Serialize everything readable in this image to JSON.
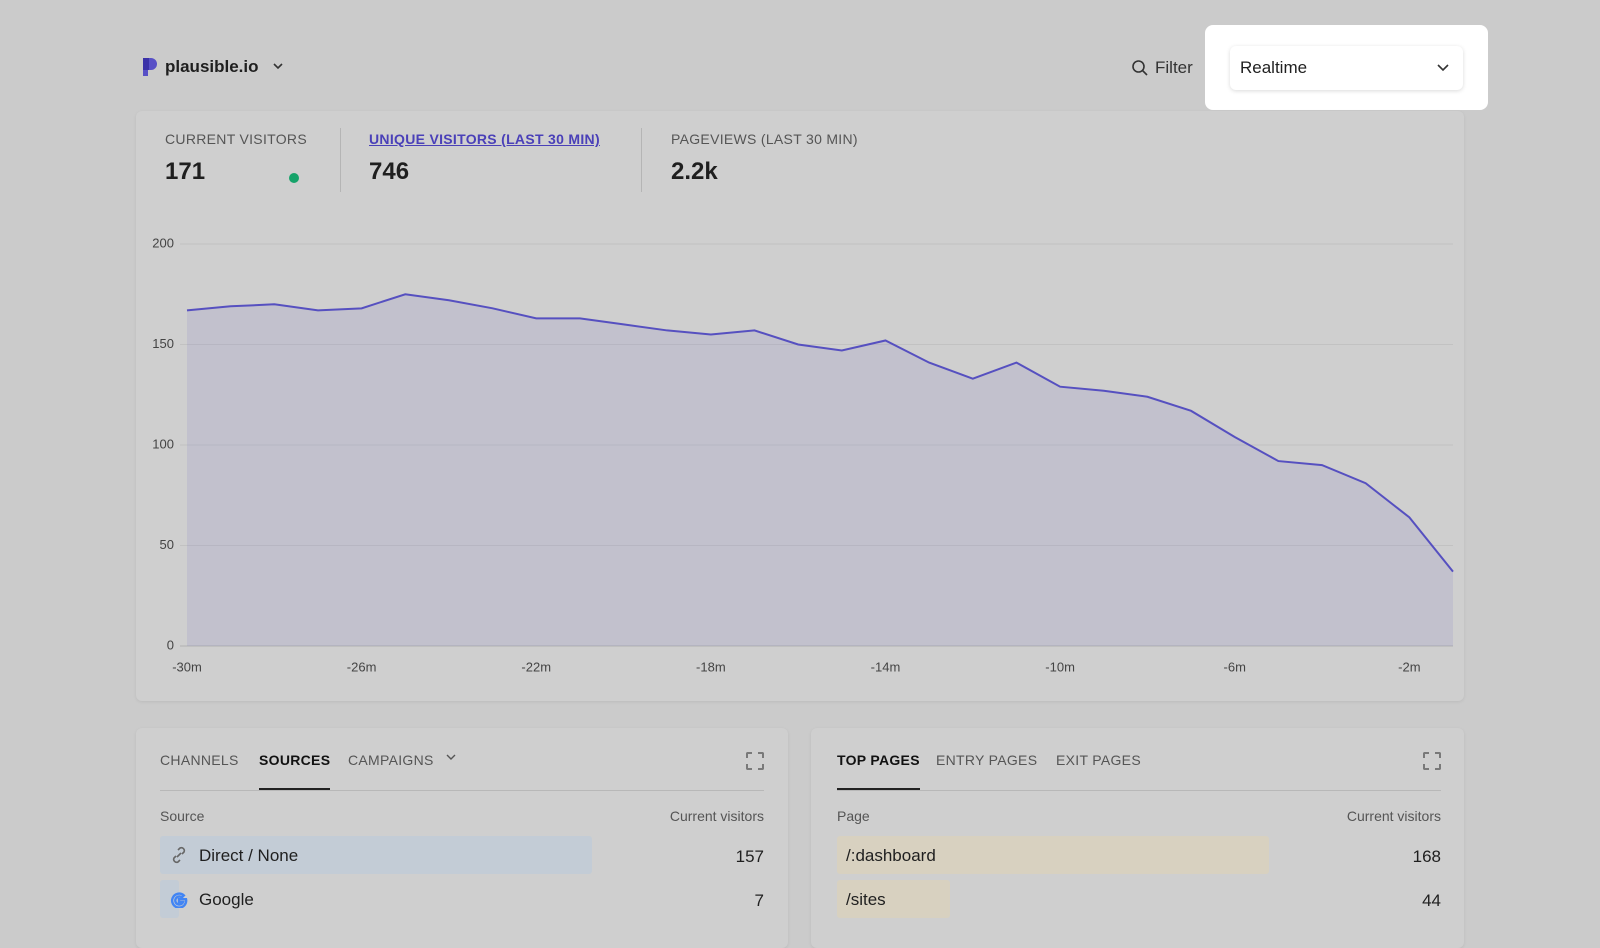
{
  "header": {
    "site": "plausible.io",
    "filter": "Filter",
    "period": "Realtime"
  },
  "stats": [
    {
      "label": "CURRENT VISITORS",
      "value": 171
    },
    {
      "label": "UNIQUE VISITORS (LAST 30 MIN)",
      "value": 746
    },
    {
      "label": "PAGEVIEWS (LAST 30 MIN)",
      "value": "2.2k"
    }
  ],
  "chart_data": {
    "type": "line",
    "color": "#5650c0",
    "x": [
      -30,
      -29,
      -28,
      -27,
      -26,
      -25,
      -24,
      -23,
      -22,
      -21,
      -20,
      -19,
      -18,
      -17,
      -16,
      -15,
      -14,
      -13,
      -12,
      -11,
      -10,
      -9,
      -8,
      -7,
      -6,
      -5,
      -4,
      -3,
      -2,
      -1
    ],
    "values": [
      167,
      169,
      170,
      167,
      168,
      175,
      172,
      168,
      163,
      163,
      160,
      157,
      155,
      157,
      150,
      147,
      152,
      141,
      133,
      141,
      129,
      127,
      124,
      117,
      104,
      92,
      90,
      81,
      64,
      37
    ],
    "xlim": [
      -30,
      -1
    ],
    "xticks": [
      {
        "value": -30,
        "label": "-30m"
      },
      {
        "value": -26,
        "label": "-26m"
      },
      {
        "value": -22,
        "label": "-22m"
      },
      {
        "value": -18,
        "label": "-18m"
      },
      {
        "value": -14,
        "label": "-14m"
      },
      {
        "value": -10,
        "label": "-10m"
      },
      {
        "value": -6,
        "label": "-6m"
      },
      {
        "value": -2,
        "label": "-2m"
      }
    ],
    "ylim": [
      0,
      200
    ],
    "yticks": [
      0,
      50,
      100,
      150,
      200
    ],
    "grid": true
  },
  "sources": {
    "tabs": [
      "CHANNELS",
      "SOURCES",
      "CAMPAIGNS"
    ],
    "columns": [
      "Source",
      "Current visitors"
    ],
    "rows": [
      [
        "Direct / None",
        157
      ],
      [
        "Google",
        7
      ]
    ]
  },
  "pages": {
    "tabs": [
      "TOP PAGES",
      "ENTRY PAGES",
      "EXIT PAGES"
    ],
    "columns": [
      "Page",
      "Current visitors"
    ],
    "rows": [
      [
        "/:dashboard",
        168
      ],
      [
        "/sites",
        44
      ]
    ]
  }
}
